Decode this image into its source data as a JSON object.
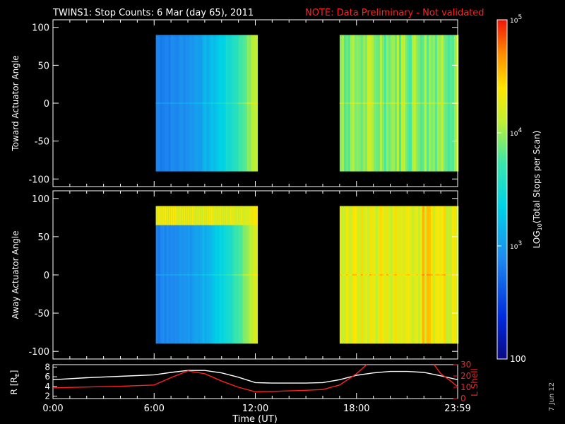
{
  "header": {
    "title": "TWINS1: Stop Counts:  6 Mar (day  65), 2011",
    "note": "NOTE: Data Preliminary - Not validated",
    "note_color": "#ff2020"
  },
  "footer": {
    "date_stamp": "7 Jun 12"
  },
  "chart_data": [
    {
      "type": "heatmap",
      "ylabel": "Toward Actuator Angle",
      "ylim": [
        -110,
        110
      ],
      "yticks": [
        -100,
        -50,
        0,
        50,
        100
      ],
      "xlim_hours": [
        0,
        24
      ],
      "data_blocks_hours": [
        [
          6.1,
          12.1
        ],
        [
          17.0,
          24.0
        ]
      ],
      "log10_counts_by_block": [
        {
          "start": 2.85,
          "end": 4.15,
          "profile": "rising-toward-end"
        },
        {
          "start": 3.55,
          "end": 4.3,
          "profile": "high-variable"
        }
      ]
    },
    {
      "type": "heatmap",
      "ylabel": "Away Actuator Angle",
      "ylim": [
        -110,
        110
      ],
      "yticks": [
        -100,
        -50,
        0,
        50,
        100
      ],
      "xlim_hours": [
        0,
        24
      ],
      "data_blocks_hours": [
        [
          6.1,
          12.1
        ],
        [
          17.0,
          24.0
        ]
      ],
      "log10_counts_by_block": [
        {
          "start": 2.85,
          "end": 4.25,
          "profile": "rising-with-high-band-near-80deg"
        },
        {
          "start": 3.9,
          "end": 4.6,
          "profile": "high-variable"
        }
      ]
    },
    {
      "type": "line",
      "ylabel_left": "R [R",
      "ylabel_left_sub": "E",
      "ylabel_left_end": "]",
      "ylabel_right": "L Shell",
      "xlabel": "Time (UT)",
      "xticks_labels": [
        "0:00",
        "6:00",
        "12:00",
        "18:00",
        "23:59"
      ],
      "xticks_hours": [
        0,
        6,
        12,
        18,
        24
      ],
      "yticks_left": [
        2,
        4,
        6,
        8
      ],
      "yticks_right": [
        0,
        10,
        20,
        30
      ],
      "ylim_left": [
        1.5,
        8.5
      ],
      "ylim_right": [
        0,
        30
      ],
      "series": [
        {
          "color": "#ffffff",
          "axis": "left",
          "x": [
            0,
            2,
            4,
            6,
            7,
            8,
            9,
            10,
            11,
            12,
            13,
            14,
            15,
            16,
            17,
            18,
            19,
            20,
            21,
            22,
            23,
            24
          ],
          "y": [
            5.4,
            5.8,
            6.1,
            6.4,
            6.9,
            7.3,
            7.3,
            6.8,
            5.9,
            4.8,
            4.7,
            4.7,
            4.7,
            4.8,
            5.4,
            6.3,
            6.8,
            7.1,
            7.1,
            6.9,
            6.2,
            5.4
          ]
        },
        {
          "color": "#ff2020",
          "axis": "right",
          "x": [
            0,
            2,
            4,
            6,
            7,
            8,
            9,
            10,
            11,
            12,
            13,
            14,
            15,
            16,
            17,
            18,
            18.6
          ],
          "y": [
            9.5,
            10.2,
            10.9,
            12.0,
            18.5,
            24.5,
            22.0,
            15.5,
            10.0,
            6.0,
            6.3,
            6.8,
            7.3,
            8.0,
            12.0,
            22.0,
            30
          ]
        },
        {
          "color": "#ff2020",
          "axis": "right",
          "x": [
            22.6,
            23,
            23.5,
            24
          ],
          "y": [
            30,
            22.0,
            16.5,
            10.5
          ]
        }
      ]
    }
  ],
  "colorbar": {
    "label_main": "LOG",
    "label_sub": "10",
    "label_rest": "(Total Stops per Scan)",
    "ticks": [
      {
        "base": "10",
        "exp": "5",
        "value": 5
      },
      {
        "base": "10",
        "exp": "4",
        "value": 4
      },
      {
        "base": "10",
        "exp": "3",
        "value": 3
      },
      {
        "base": "100",
        "exp": "",
        "value": 2
      }
    ],
    "range_log10": [
      2,
      5
    ]
  }
}
